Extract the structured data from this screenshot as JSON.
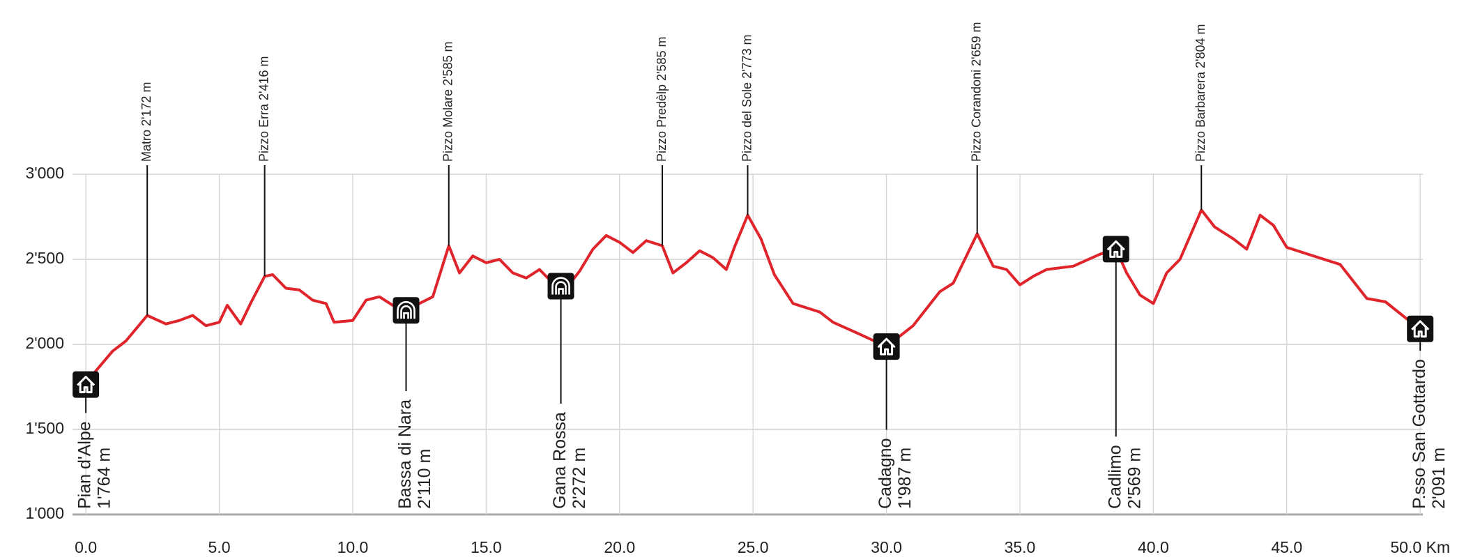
{
  "chart_data": {
    "type": "line",
    "color": "#e0242b",
    "grid": true,
    "xlim": [
      -0.5,
      50.1
    ],
    "ylim": [
      1000,
      3000
    ],
    "xticks": [
      {
        "value": 0,
        "label": "0.0"
      },
      {
        "value": 5,
        "label": "5.0"
      },
      {
        "value": 10,
        "label": "10.0"
      },
      {
        "value": 15,
        "label": "15.0"
      },
      {
        "value": 20,
        "label": "20.0"
      },
      {
        "value": 25,
        "label": "25.0"
      },
      {
        "value": 30,
        "label": "30.0"
      },
      {
        "value": 35,
        "label": "35.0"
      },
      {
        "value": 40,
        "label": "40.0"
      },
      {
        "value": 45,
        "label": "45.0"
      },
      {
        "value": 50,
        "label": "50.0 Km"
      }
    ],
    "yticks": [
      {
        "value": 1000,
        "label": "1'000"
      },
      {
        "value": 1500,
        "label": "1'500"
      },
      {
        "value": 2000,
        "label": "2'000"
      },
      {
        "value": 2500,
        "label": "2'500"
      },
      {
        "value": 3000,
        "label": "3'000"
      }
    ],
    "x": [
      0,
      0.3,
      1.0,
      1.5,
      2.3,
      3.0,
      3.5,
      4.0,
      4.5,
      5.0,
      5.3,
      5.8,
      6.2,
      6.7,
      7.0,
      7.5,
      8.0,
      8.5,
      9.0,
      9.3,
      10.0,
      10.5,
      11.0,
      11.5,
      12.0,
      12.5,
      13.0,
      13.6,
      14.0,
      14.5,
      15.0,
      15.5,
      16.0,
      16.5,
      17.0,
      17.5,
      18.0,
      18.5,
      19.0,
      19.5,
      20.0,
      20.5,
      21.0,
      21.6,
      22.0,
      22.5,
      23.0,
      23.5,
      24.0,
      24.3,
      24.8,
      25.3,
      25.8,
      26.5,
      27.5,
      28.0,
      29.0,
      30.0,
      31.0,
      32.0,
      32.5,
      33.4,
      34.0,
      34.5,
      35.0,
      35.5,
      36.0,
      37.0,
      38.0,
      38.6,
      39.0,
      39.5,
      40.0,
      40.5,
      41.0,
      41.8,
      42.3,
      43.0,
      43.5,
      44.0,
      44.5,
      45.0,
      46.0,
      47.0,
      48.0,
      48.7,
      49.5,
      50.0
    ],
    "values": [
      1764,
      1830,
      1960,
      2020,
      2170,
      2120,
      2140,
      2170,
      2110,
      2130,
      2230,
      2120,
      2250,
      2400,
      2410,
      2330,
      2320,
      2260,
      2240,
      2130,
      2140,
      2260,
      2280,
      2230,
      2200,
      2240,
      2280,
      2580,
      2420,
      2520,
      2480,
      2500,
      2420,
      2390,
      2440,
      2360,
      2330,
      2430,
      2560,
      2640,
      2600,
      2540,
      2610,
      2580,
      2420,
      2480,
      2550,
      2510,
      2440,
      2570,
      2760,
      2620,
      2410,
      2240,
      2190,
      2130,
      2060,
      1987,
      2110,
      2310,
      2360,
      2650,
      2460,
      2440,
      2350,
      2400,
      2440,
      2460,
      2530,
      2560,
      2420,
      2290,
      2240,
      2420,
      2500,
      2790,
      2690,
      2620,
      2560,
      2760,
      2700,
      2570,
      2520,
      2470,
      2270,
      2250,
      2150,
      2091
    ],
    "peaks": [
      {
        "label": "Matro 2'172 m",
        "x": 2.3
      },
      {
        "label": "Pizzo Erra 2'416 m",
        "x": 6.7
      },
      {
        "label": "Pizzo Molare 2'585 m",
        "x": 13.6
      },
      {
        "label": "Pizzo Predèlp 2'585 m",
        "x": 21.6
      },
      {
        "label": "Pizzo del Sole 2'773 m",
        "x": 24.8
      },
      {
        "label": "Pizzo Corandoni 2'659 m",
        "x": 33.4
      },
      {
        "label": "Pizzo Barbarera 2'804 m",
        "x": 41.8
      }
    ],
    "huts": [
      {
        "name": "Pian d'Alpe",
        "elevation": "1'764 m",
        "x": 0,
        "icon": "house"
      },
      {
        "name": "Bassa di Nara",
        "elevation": "2'110 m",
        "x": 12.0,
        "icon": "bivouac"
      },
      {
        "name": "Gana Rossa",
        "elevation": "2'272 m",
        "x": 17.8,
        "icon": "bivouac"
      },
      {
        "name": "Cadagno",
        "elevation": "1'987 m",
        "x": 30.0,
        "icon": "house"
      },
      {
        "name": "Cadlimo",
        "elevation": "2'569 m",
        "x": 38.6,
        "icon": "house"
      },
      {
        "name": "P.sso San Gottardo",
        "elevation": "2'091 m",
        "x": 50.0,
        "icon": "house"
      }
    ]
  }
}
